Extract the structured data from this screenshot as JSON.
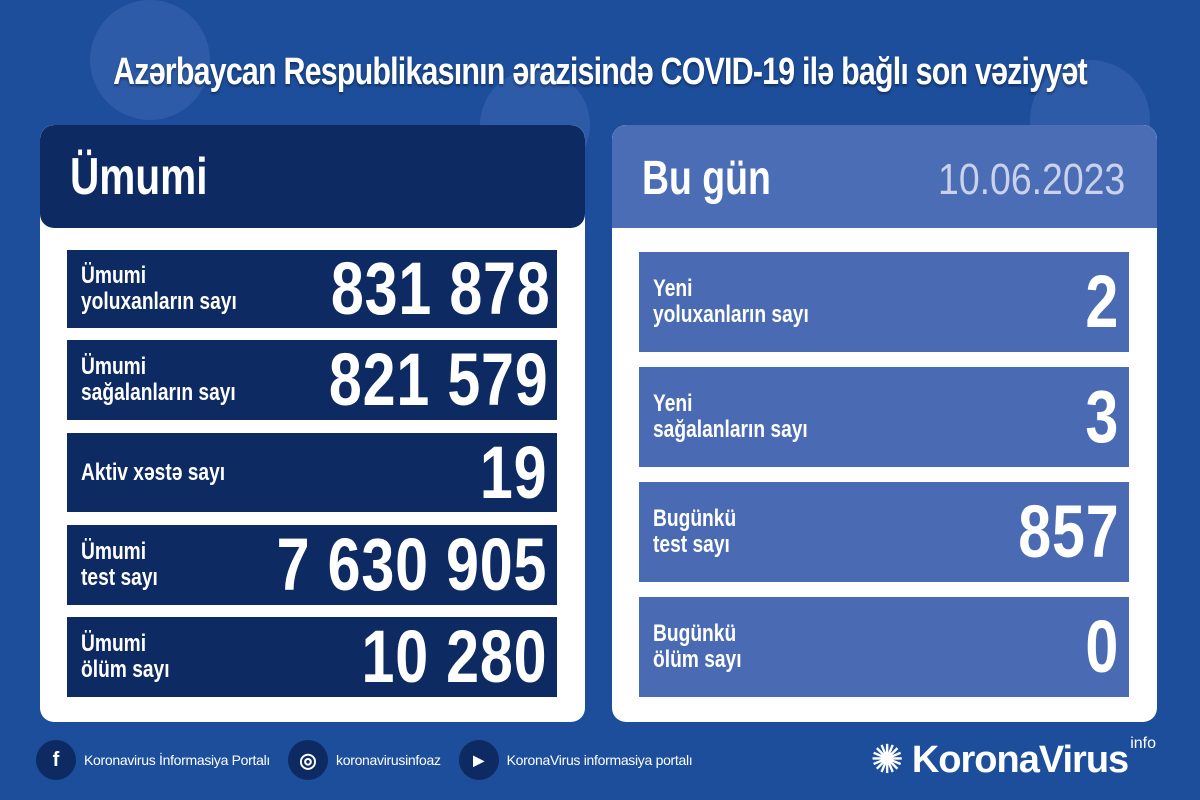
{
  "title": "Azərbaycan Respublikasının ərazisində COVID-19 ilə bağlı son vəziyyət",
  "left": {
    "header": "Ümumi",
    "rows": [
      {
        "label": "Ümumi\nyoluxanların sayı",
        "value": "831 878"
      },
      {
        "label": "Ümumi\nsağalanların sayı",
        "value": "821 579"
      },
      {
        "label": "Aktiv xəstə sayı",
        "value": "19"
      },
      {
        "label": "Ümumi\ntest sayı",
        "value": "7 630 905"
      },
      {
        "label": "Ümumi\nölüm sayı",
        "value": "10 280"
      }
    ]
  },
  "right": {
    "header": "Bu gün",
    "date": "10.06.2023",
    "rows": [
      {
        "label": "Yeni\nyoluxanların sayı",
        "value": "2"
      },
      {
        "label": "Yeni\nsağalanların sayı",
        "value": "3"
      },
      {
        "label": "Bugünkü\ntest sayı",
        "value": "857"
      },
      {
        "label": "Bugünkü\nölüm sayı",
        "value": "0"
      }
    ]
  },
  "footer": {
    "facebook": "Koronavirus İnformasiya Portalı",
    "instagram": "koronavirusinfoaz",
    "youtube": "KoronaVirus informasiya portalı"
  },
  "brand": {
    "name": "KoronaVirus",
    "sup": "info"
  },
  "colors": {
    "background": "#1d4e9b",
    "navy": "#0e2a62",
    "light_blue": "#4a6bb4"
  }
}
